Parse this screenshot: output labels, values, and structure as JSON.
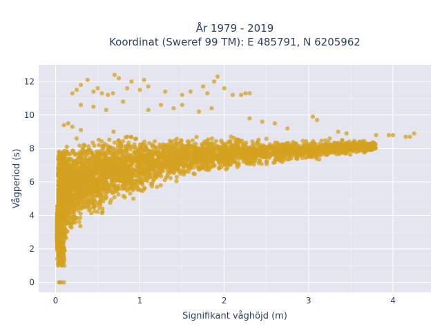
{
  "chart_data": {
    "type": "scatter",
    "title_line1": "År 1979 - 2019",
    "title_line2": "Koordinat (Sweref 99 TM): E 485791, N 6205962",
    "xlabel": "Signifikant våghöjd (m)",
    "ylabel": "Vågperiod (s)",
    "xlim": [
      -0.2,
      4.45
    ],
    "ylim": [
      -0.6,
      13.0
    ],
    "x_ticks": [
      0,
      1,
      2,
      3,
      4
    ],
    "y_ticks": [
      0,
      2,
      4,
      6,
      8,
      10,
      12
    ],
    "grid": true,
    "point_color": "#d4a21f",
    "plot_bg": "#e5e5ef",
    "grid_color": "#ffffff",
    "text_color": "#2a3f5f",
    "cloud_envelope": {
      "upper": [
        [
          0.02,
          4.5
        ],
        [
          0.05,
          7.0
        ],
        [
          0.1,
          8.2
        ],
        [
          0.2,
          8.6
        ],
        [
          0.4,
          8.9
        ],
        [
          0.7,
          9.3
        ],
        [
          1.0,
          9.0
        ],
        [
          1.5,
          8.9
        ],
        [
          2.0,
          8.8
        ],
        [
          2.5,
          8.6
        ],
        [
          3.0,
          8.4
        ],
        [
          3.5,
          8.5
        ],
        [
          3.8,
          8.3
        ]
      ],
      "lower": [
        [
          0.02,
          1.0
        ],
        [
          0.1,
          1.3
        ],
        [
          0.2,
          1.8
        ],
        [
          0.4,
          2.4
        ],
        [
          0.6,
          3.0
        ],
        [
          0.8,
          3.6
        ],
        [
          1.0,
          4.3
        ],
        [
          1.5,
          5.5
        ],
        [
          2.0,
          6.2
        ],
        [
          2.5,
          6.7
        ],
        [
          3.0,
          7.1
        ],
        [
          3.5,
          7.5
        ],
        [
          3.8,
          7.9
        ]
      ]
    },
    "sample_points": [
      [
        0.05,
        0.0
      ],
      [
        0.07,
        0.0
      ],
      [
        0.1,
        0.0
      ],
      [
        0.04,
        0.0
      ],
      [
        0.2,
        11.3
      ],
      [
        0.25,
        11.5
      ],
      [
        0.3,
        11.8
      ],
      [
        0.38,
        12.1
      ],
      [
        0.45,
        11.4
      ],
      [
        0.5,
        11.6
      ],
      [
        0.55,
        11.3
      ],
      [
        0.62,
        11.2
      ],
      [
        0.68,
        11.3
      ],
      [
        0.7,
        12.4
      ],
      [
        0.75,
        12.2
      ],
      [
        0.85,
        11.6
      ],
      [
        0.9,
        12.0
      ],
      [
        1.0,
        11.5
      ],
      [
        1.05,
        12.1
      ],
      [
        1.1,
        11.7
      ],
      [
        1.3,
        11.4
      ],
      [
        1.5,
        11.2
      ],
      [
        1.6,
        11.4
      ],
      [
        1.75,
        11.7
      ],
      [
        1.8,
        11.3
      ],
      [
        1.88,
        12.0
      ],
      [
        1.92,
        12.3
      ],
      [
        2.0,
        11.6
      ],
      [
        2.1,
        11.2
      ],
      [
        2.2,
        11.2
      ],
      [
        2.25,
        11.3
      ],
      [
        2.3,
        11.3
      ],
      [
        0.3,
        10.6
      ],
      [
        0.45,
        10.5
      ],
      [
        0.6,
        10.3
      ],
      [
        0.8,
        10.8
      ],
      [
        1.1,
        10.3
      ],
      [
        1.25,
        10.6
      ],
      [
        1.4,
        10.4
      ],
      [
        1.5,
        10.6
      ],
      [
        1.7,
        10.2
      ],
      [
        1.85,
        10.4
      ],
      [
        2.3,
        9.8
      ],
      [
        2.45,
        9.6
      ],
      [
        2.6,
        9.5
      ],
      [
        2.75,
        9.2
      ],
      [
        3.05,
        9.9
      ],
      [
        3.1,
        9.7
      ],
      [
        3.35,
        9.0
      ],
      [
        3.45,
        8.9
      ],
      [
        3.6,
        8.4
      ],
      [
        3.75,
        8.2
      ],
      [
        3.8,
        8.8
      ],
      [
        3.95,
        8.8
      ],
      [
        4.0,
        8.8
      ],
      [
        4.15,
        8.7
      ],
      [
        4.2,
        8.7
      ],
      [
        4.25,
        8.9
      ],
      [
        3.7,
        8.1
      ],
      [
        3.65,
        8.1
      ],
      [
        3.55,
        8.3
      ],
      [
        3.3,
        8.3
      ],
      [
        3.4,
        8.5
      ],
      [
        3.25,
        8.6
      ],
      [
        0.02,
        1.4
      ],
      [
        0.03,
        1.7
      ],
      [
        0.05,
        2.1
      ],
      [
        0.06,
        4.8
      ],
      [
        0.08,
        6.3
      ],
      [
        0.05,
        6.8
      ],
      [
        0.1,
        9.4
      ],
      [
        0.15,
        9.5
      ],
      [
        0.2,
        9.3
      ],
      [
        0.3,
        9.1
      ],
      [
        0.25,
        8.6
      ]
    ],
    "seed": 42
  }
}
